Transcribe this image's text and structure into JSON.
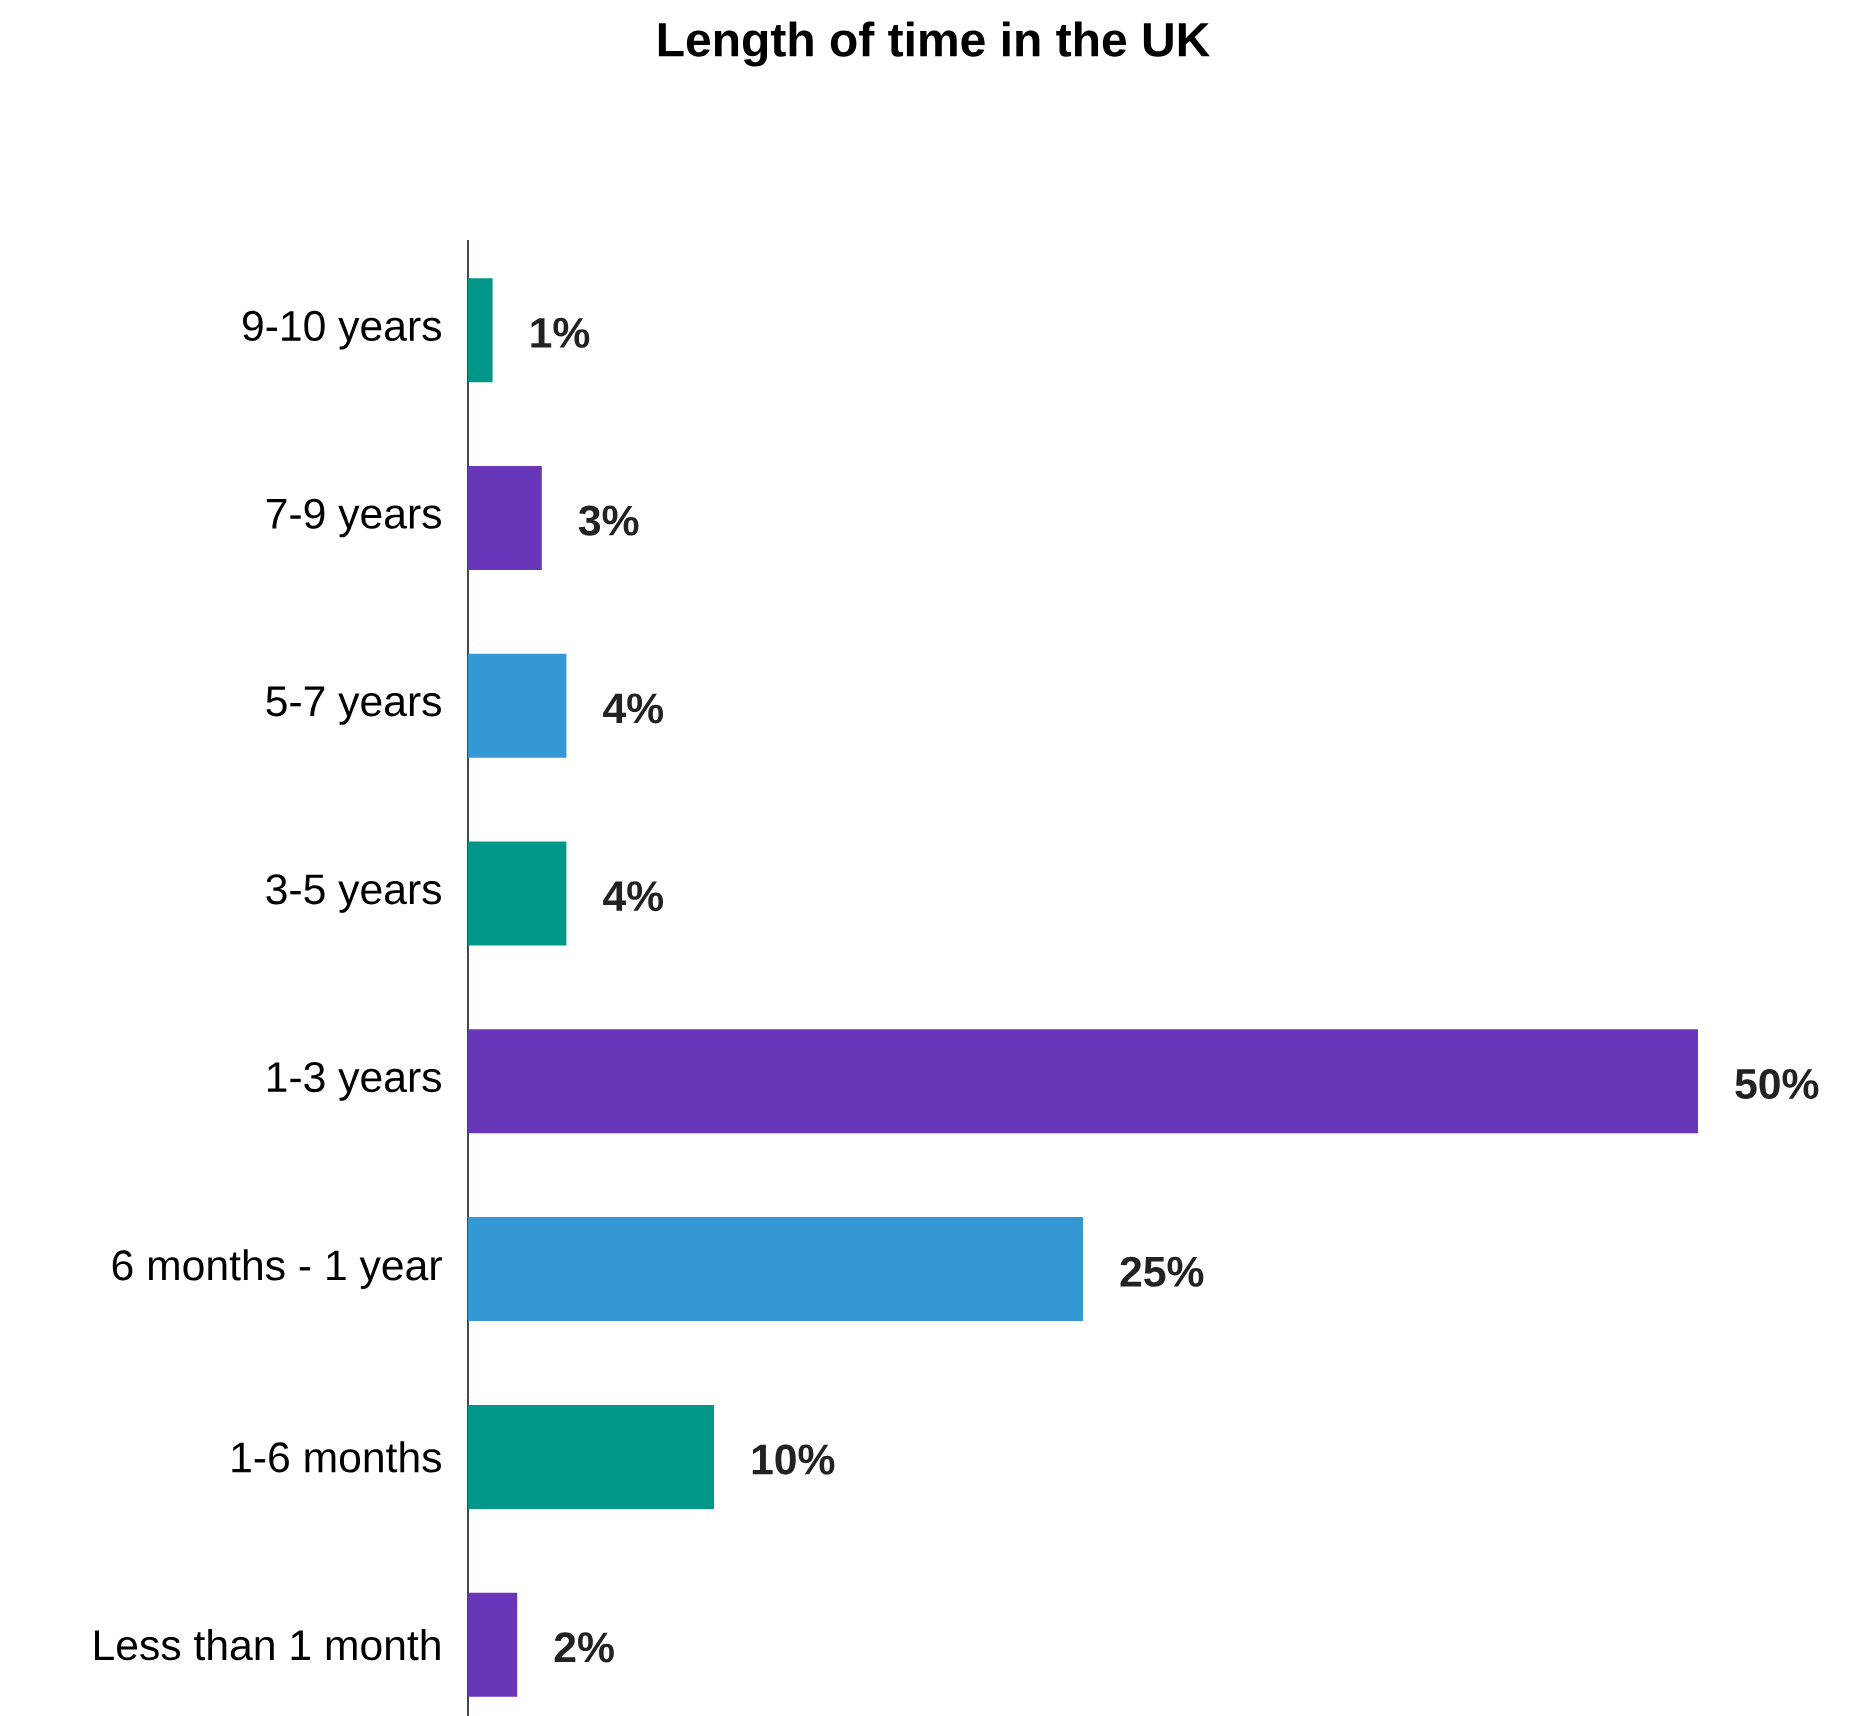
{
  "chart_data": {
    "type": "bar",
    "orientation": "horizontal",
    "title": "Length of time in the UK",
    "categories": [
      "9-10 years",
      "7-9 years",
      "5-7 years",
      "3-5 years",
      "1-3 years",
      "6 months - 1 year",
      "1-6 months",
      "Less than 1 month"
    ],
    "values": [
      1,
      3,
      4,
      4,
      50,
      25,
      10,
      2
    ],
    "colors": [
      "#009688",
      "#6736b9",
      "#3498d4",
      "#009688",
      "#6736b9",
      "#3498d4",
      "#009688",
      "#6736b9"
    ],
    "value_labels": [
      "1%",
      "3%",
      "4%",
      "4%",
      "50%",
      "25%",
      "10%",
      "2%"
    ]
  }
}
